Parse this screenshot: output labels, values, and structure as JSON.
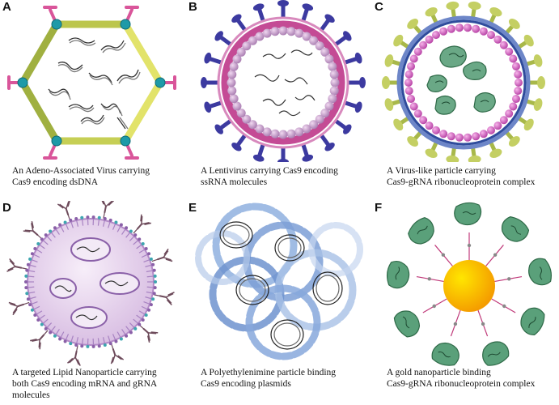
{
  "panels": [
    {
      "letter": "A",
      "caption_line1": "An Adeno-Associated Virus carrying",
      "caption_line2": "Cas9 encoding dsDNA",
      "caption_line3": ""
    },
    {
      "letter": "B",
      "caption_line1": "A Lentivirus carrying Cas9 encoding",
      "caption_line2": "ssRNA molecules",
      "caption_line3": ""
    },
    {
      "letter": "C",
      "caption_line1": "A Virus-like particle carrying",
      "caption_line2": "Cas9-gRNA ribonucleoprotein complex",
      "caption_line3": ""
    },
    {
      "letter": "D",
      "caption_line1": "A targeted Lipid Nanoparticle carrying",
      "caption_line2": "both Cas9 encoding mRNA and gRNA",
      "caption_line3": "molecules"
    },
    {
      "letter": "E",
      "caption_line1": "A Polyethylenimine particle binding",
      "caption_line2": "Cas9 encoding plasmids",
      "caption_line3": ""
    },
    {
      "letter": "F",
      "caption_line1": "A gold nanoparticle binding",
      "caption_line2": "Cas9-gRNA ribonucleoprotein complex",
      "caption_line3": ""
    }
  ],
  "colors": {
    "aav_capsid_left": "#a0b040",
    "aav_capsid_right": "#e2e36a",
    "aav_vertex": "#1e9aa8",
    "aav_spike": "#d9559a",
    "lenti_spike": "#3c3aa0",
    "lenti_membrane": "#c44b95",
    "lenti_bead": "#c69ac8",
    "vlp_spike": "#a8b84a",
    "vlp_membrane": "#3d5aa8",
    "vlp_bead": "#cc5cb8",
    "rnp_green": "#4f9b6e",
    "lnp_fill": "#e8d8ee",
    "lnp_lipid": "#8a60a8",
    "antibody": "#6d4a5a",
    "pei_blue": "#6f93cf",
    "gold_center": "#ffe100",
    "gold_edge": "#f4a300"
  }
}
